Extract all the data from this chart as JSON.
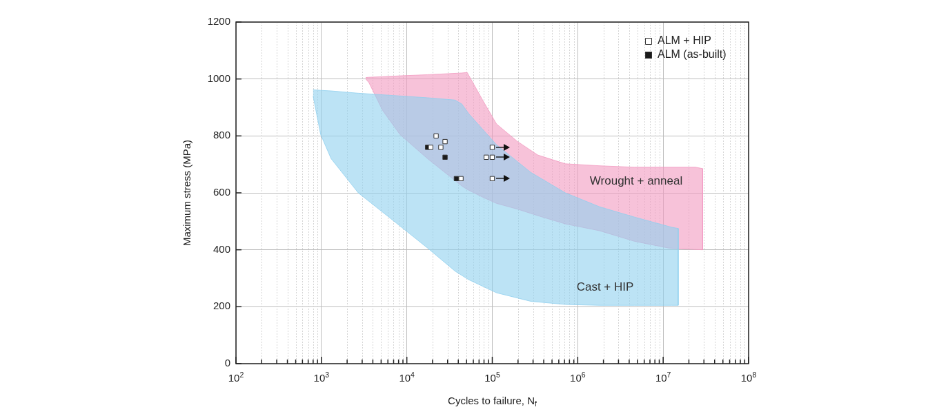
{
  "chart_data": {
    "type": "scatter",
    "xlabel": "Cycles to failure, N$_{f}$",
    "ylabel": "Maximum stress (MPa)",
    "log": "x",
    "xlim": [
      100,
      100000000
    ],
    "ylim": [
      0,
      1200
    ],
    "xticks": [
      {
        "value": 100,
        "label": "10$^{2}$"
      },
      {
        "value": 1000,
        "label": "10$^{3}$"
      },
      {
        "value": 10000,
        "label": "10$^{4}$"
      },
      {
        "value": 100000,
        "label": "10$^{5}$"
      },
      {
        "value": 1000000,
        "label": "10$^{6}$"
      },
      {
        "value": 10000000,
        "label": "10$^{7}$"
      },
      {
        "value": 100000000,
        "label": "10$^{8}$"
      }
    ],
    "yticks": [
      0,
      200,
      400,
      600,
      800,
      1000,
      1200
    ],
    "grid": true,
    "legend": "top right",
    "marker": "square",
    "series": [
      {
        "type": "area",
        "color": "#8fd0ef",
        "marker": "none",
        "x": [
          800,
          980,
          1300,
          2700,
          6900,
          17500,
          36700,
          44000,
          53000,
          112000,
          282000,
          716000,
          1800000,
          4600000,
          12600000,
          15000000,
          15000000,
          12600000,
          4600000,
          1800000,
          716000,
          282000,
          112000,
          53000,
          44000,
          36700,
          17500,
          6900,
          2700,
          1300,
          980,
          800
        ],
        "values": [
          962,
          960,
          958,
          950,
          942,
          934,
          926,
          912,
          878,
          769,
          672,
          600,
          551,
          515,
          479,
          475,
          205,
          205,
          205,
          205,
          208,
          219,
          249,
          295,
          310,
          325,
          406,
          503,
          600,
          720,
          805,
          940
        ]
      },
      {
        "type": "area",
        "color": "#f29ac0",
        "marker": "none",
        "x": [
          3300,
          3600,
          5200,
          8300,
          17500,
          44000,
          50800,
          77000,
          112000,
          196000,
          340000,
          716000,
          1800000,
          4600000,
          11600000,
          24000000,
          29000000,
          29000000,
          24000000,
          11600000,
          4600000,
          1800000,
          716000,
          340000,
          196000,
          112000,
          77000,
          50800,
          44000,
          17500,
          8300,
          5200,
          3600,
          3300
        ],
        "values": [
          1005,
          1006,
          1008,
          1011,
          1015,
          1021,
          1023,
          926,
          842,
          781,
          733,
          702,
          695,
          690,
          690,
          690,
          685,
          400,
          401,
          406,
          430,
          467,
          491,
          520,
          543,
          563,
          585,
          612,
          624,
          720,
          805,
          890,
          987,
          1000
        ]
      },
      {
        "type": "scatter",
        "name": "ALM + HIP",
        "color": "#ffffff",
        "x": [
          22000,
          28000,
          25000,
          19000,
          43000,
          100000,
          85000,
          100000,
          100000
        ],
        "values": [
          800,
          780,
          760,
          760,
          650,
          760,
          725,
          725,
          650
        ]
      },
      {
        "type": "scatter",
        "name": "ALM (as-built)",
        "color": "#1a1a1a",
        "x": [
          17500,
          28000,
          38000
        ],
        "values": [
          760,
          725,
          650
        ]
      }
    ],
    "annotations": [
      "Wrought + anneal",
      "Cast + HIP"
    ]
  }
}
